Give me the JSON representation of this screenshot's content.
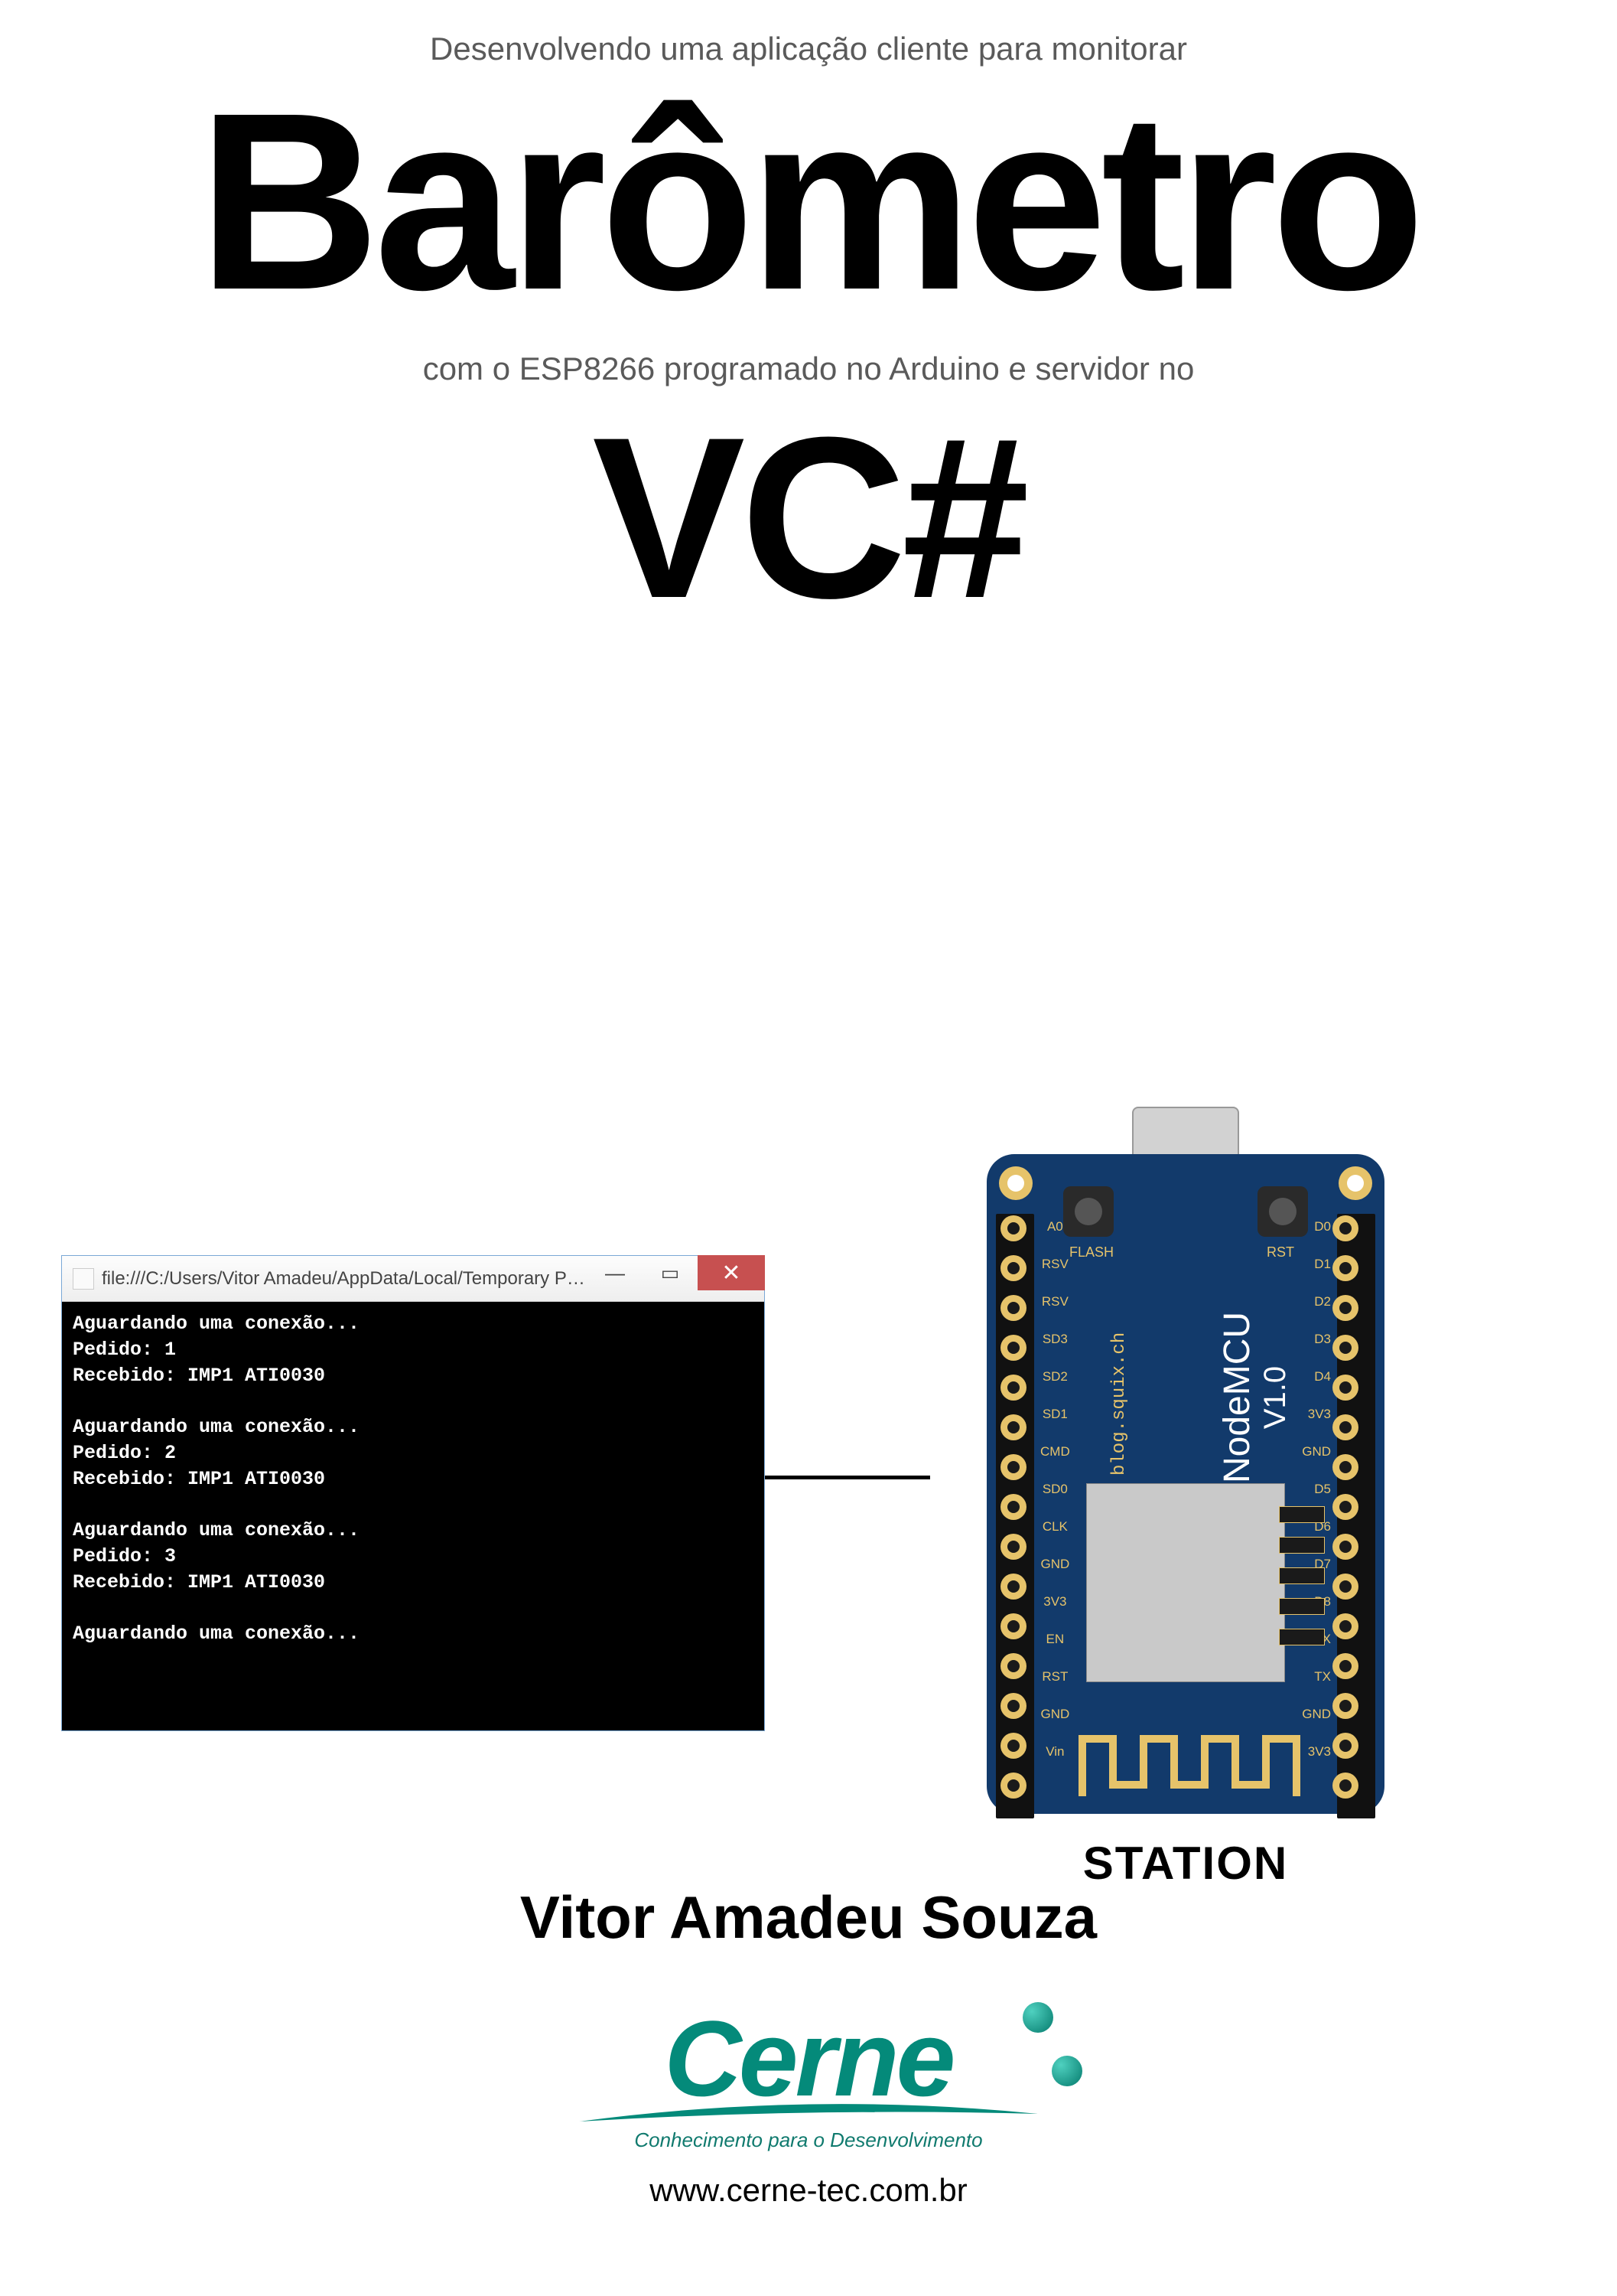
{
  "header": {
    "subtitle1": "Desenvolvendo uma aplicação cliente para monitorar",
    "title1": "Barômetro",
    "subtitle2": "com o ESP8266 programado no Arduino e servidor no",
    "title2": "VC#"
  },
  "console": {
    "titlebar_icon": "app-icon",
    "titlebar_text": "file:///C:/Users/Vitor Amadeu/AppData/Local/Temporary Projects/ConsoleAppl...",
    "buttons": {
      "min": "—",
      "max": "▭",
      "close": "✕"
    },
    "background": "#000000",
    "text_color": "#e8e8e8",
    "font": "Consolas",
    "lines": [
      "Aguardando uma conexão...",
      "Pedido: 1",
      "Recebido: IMP1 ATI0030",
      "",
      "Aguardando uma conexão...",
      "Pedido: 2",
      "Recebido: IMP1 ATI0030",
      "",
      "Aguardando uma conexão...",
      "Pedido: 3",
      "Recebido: IMP1 ATI0030",
      "",
      "Aguardando uma conexão..."
    ],
    "window_border_color": "#7aa8d6",
    "close_button_color": "#c75050"
  },
  "board": {
    "label": "STATION",
    "pcb_color": "#123a6b",
    "pad_color": "#e6c36a",
    "usb_color": "#d2d2d2",
    "shield_color": "#c9c9c9",
    "buttons": {
      "flash": "FLASH",
      "rst": "RST"
    },
    "silk_blog": "blog.squix.ch",
    "silk_name": "NodeMCU",
    "silk_ver": "V1.0",
    "pins_left": [
      "A0",
      "RSV",
      "RSV",
      "SD3",
      "SD2",
      "SD1",
      "CMD",
      "SD0",
      "CLK",
      "GND",
      "3V3",
      "EN",
      "RST",
      "GND",
      "Vin"
    ],
    "pins_right": [
      "D0",
      "D1",
      "D2",
      "D3",
      "D4",
      "3V3",
      "GND",
      "D5",
      "D6",
      "D7",
      "D8",
      "RX",
      "TX",
      "GND",
      "3V3"
    ],
    "top_labels_left": [
      "GND",
      "Vin"
    ],
    "top_labels_right": [
      "GND",
      "3V3"
    ]
  },
  "author": "Vitor Amadeu Souza",
  "logo": {
    "name": "Cerne",
    "color": "#048a7a",
    "tagline": "Conhecimento para o Desenvolvimento",
    "url": "www.cerne-tec.com.br"
  }
}
